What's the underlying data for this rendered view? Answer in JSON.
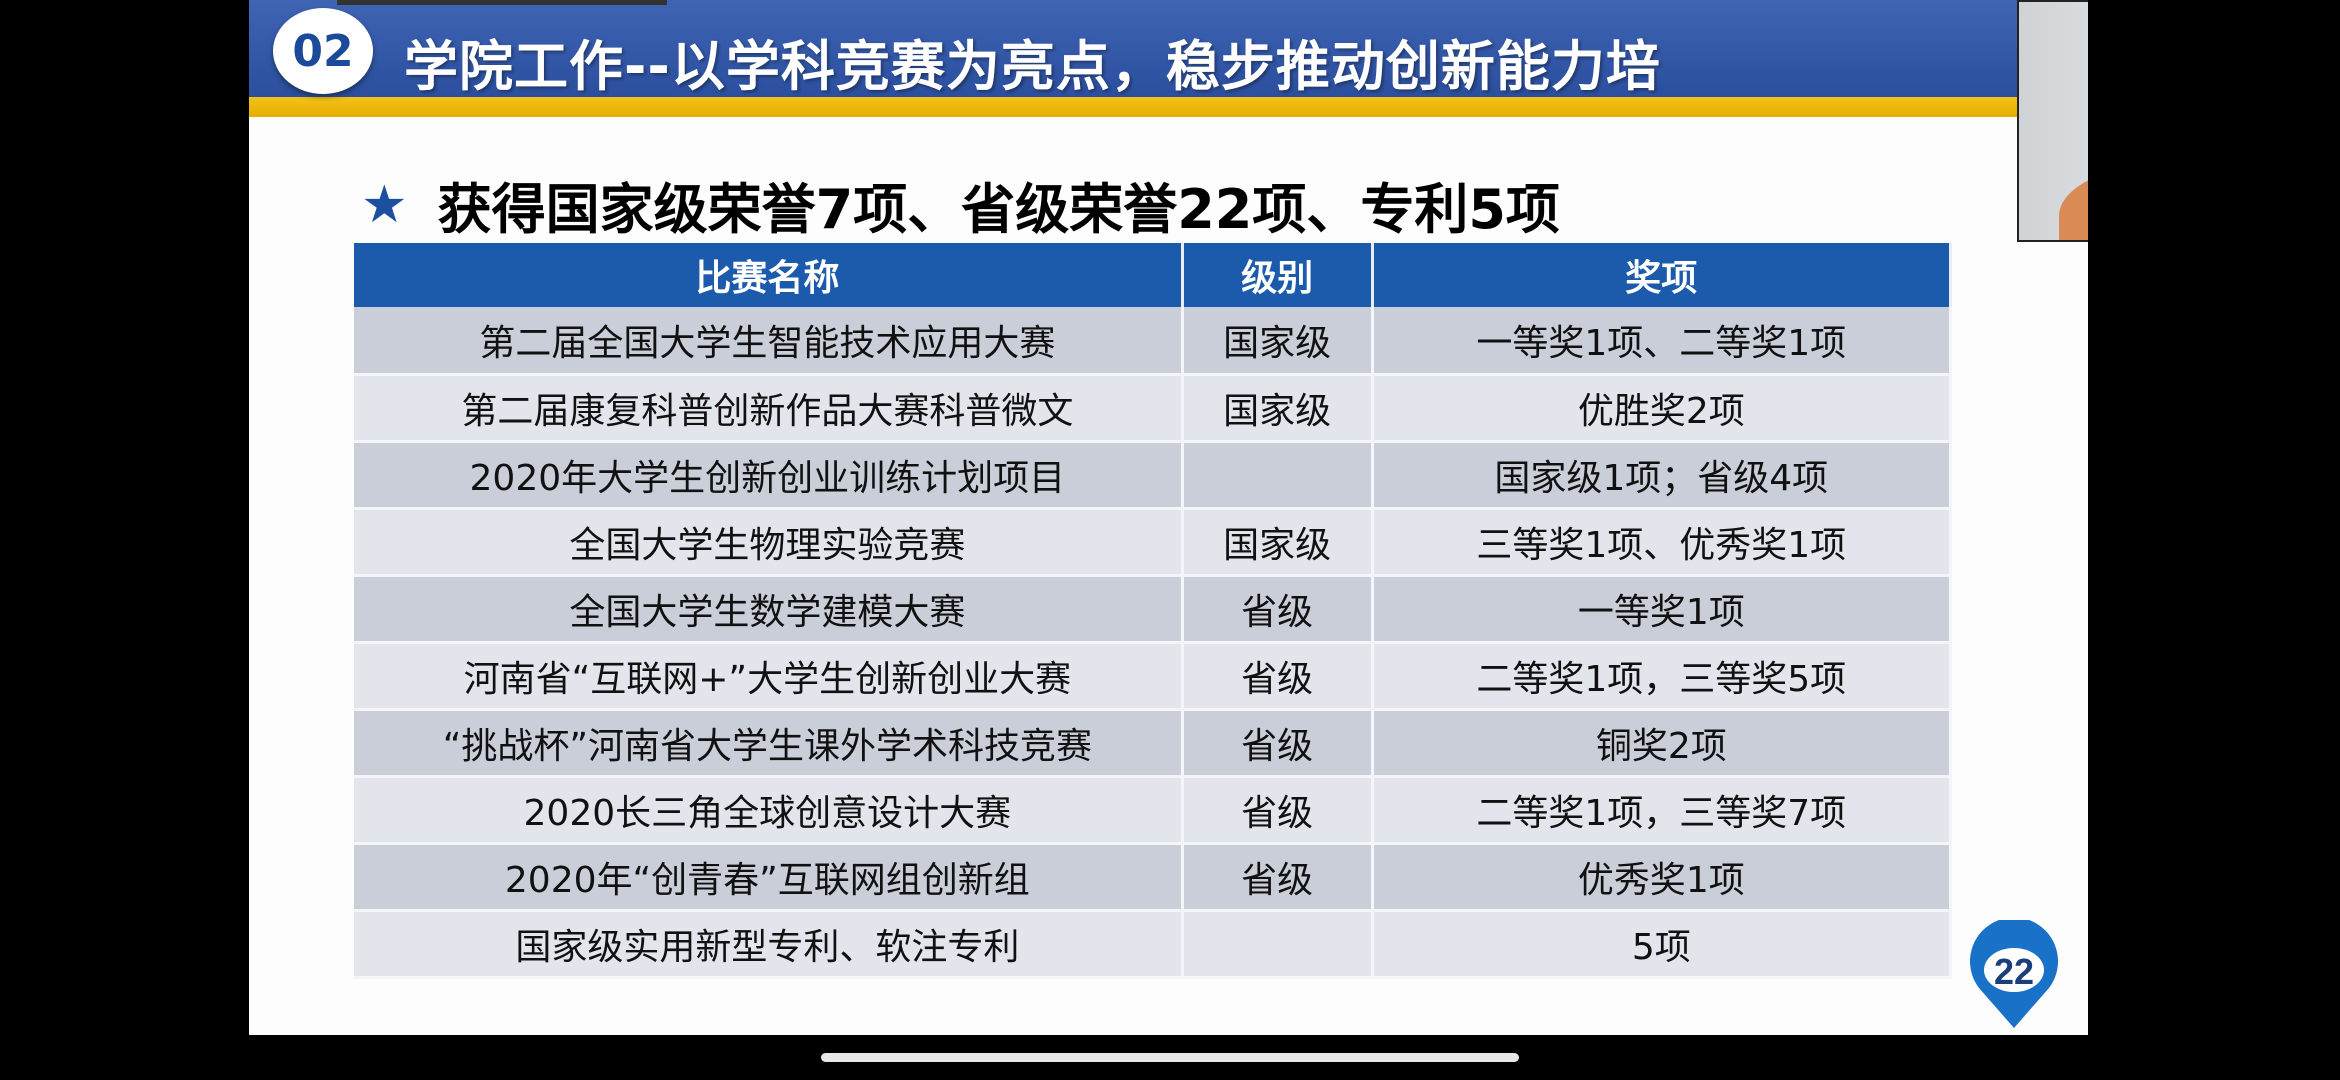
{
  "slide": {
    "section_number": "02",
    "title": "学院工作--以学科竞赛为亮点，稳步推动创新能力培",
    "heading": "获得国家级荣誉7项、省级荣誉22项、专利5项",
    "star_icon": "star-icon",
    "page_number": "22",
    "colors": {
      "header_band": "#2f56a8",
      "accent_stripe": "#f0bb10",
      "table_header": "#1c5aab",
      "row_dark": "#c9ced9",
      "row_light": "#e2e5ec"
    },
    "table": {
      "headers": [
        "比赛名称",
        "级别",
        "奖项"
      ],
      "rows": [
        [
          "第二届全国大学生智能技术应用大赛",
          "国家级",
          "一等奖1项、二等奖1项"
        ],
        [
          "第二届康复科普创新作品大赛科普微文",
          "国家级",
          "优胜奖2项"
        ],
        [
          "2020年大学生创新创业训练计划项目",
          "",
          "国家级1项；省级4项"
        ],
        [
          "全国大学生物理实验竞赛",
          "国家级",
          "三等奖1项、优秀奖1项"
        ],
        [
          "全国大学生数学建模大赛",
          "省级",
          "一等奖1项"
        ],
        [
          "河南省“互联网+”大学生创新创业大赛",
          "省级",
          "二等奖1项，三等奖5项"
        ],
        [
          "“挑战杯”河南省大学生课外学术科技竞赛",
          "省级",
          "铜奖2项"
        ],
        [
          "2020长三角全球创意设计大赛",
          "省级",
          "二等奖1项，三等奖7项"
        ],
        [
          "2020年“创青春”互联网组创新组",
          "省级",
          "优秀奖1项"
        ],
        [
          "国家级实用新型专利、软注专利",
          "",
          "5项"
        ]
      ]
    }
  }
}
